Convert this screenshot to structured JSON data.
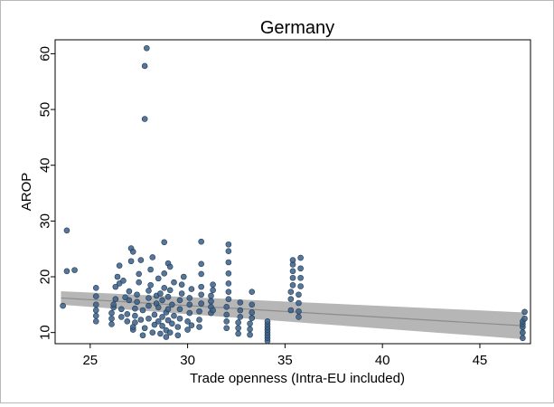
{
  "chart_data": {
    "type": "scatter",
    "title": "Germany",
    "xlabel": "Trade openness (Intra-EU included)",
    "ylabel": "AROP",
    "xlim": [
      23.2,
      47.6
    ],
    "ylim": [
      8.0,
      62.5
    ],
    "xticks": [
      "25",
      "30",
      "35",
      "40",
      "45"
    ],
    "yticks": [
      "10",
      "20",
      "30",
      "40",
      "50",
      "60"
    ],
    "grid": false,
    "legend": "none",
    "colors": {
      "points": "#3b5f86",
      "points_edge": "#1f3a57",
      "fit_line": "#8c8c8c",
      "ci_band": "#a9a9a9"
    },
    "fit": {
      "type": "linear",
      "x": [
        23.5,
        47.3
      ],
      "y": [
        16.2,
        11.2
      ],
      "ci_lower": [
        15.0,
        8.8
      ],
      "ci_upper": [
        17.4,
        13.6
      ]
    },
    "series": [
      {
        "points": [
          [
            23.6,
            14.8
          ],
          [
            23.8,
            28.3
          ],
          [
            23.8,
            21.0
          ],
          [
            24.2,
            21.2
          ],
          [
            25.3,
            12.0
          ],
          [
            25.3,
            13.0
          ],
          [
            25.3,
            14.0
          ],
          [
            25.3,
            15.0
          ],
          [
            25.3,
            16.5
          ],
          [
            25.3,
            18.0
          ],
          [
            26.1,
            11.5
          ],
          [
            26.1,
            12.5
          ],
          [
            26.1,
            13.5
          ],
          [
            26.2,
            14.5
          ],
          [
            26.2,
            15.0
          ],
          [
            26.3,
            16.0
          ],
          [
            26.3,
            18.2
          ],
          [
            26.4,
            20.0
          ],
          [
            26.5,
            22.0
          ],
          [
            26.5,
            18.8
          ],
          [
            26.6,
            12.8
          ],
          [
            26.6,
            14.2
          ],
          [
            26.7,
            19.3
          ],
          [
            26.8,
            16.3
          ],
          [
            26.9,
            12.0
          ],
          [
            26.9,
            13.3
          ],
          [
            27.0,
            15.8
          ],
          [
            27.0,
            17.4
          ],
          [
            27.1,
            22.8
          ],
          [
            27.1,
            25.1
          ],
          [
            27.2,
            24.5
          ],
          [
            27.2,
            10.5
          ],
          [
            27.2,
            11.0
          ],
          [
            27.3,
            11.8
          ],
          [
            27.3,
            13.0
          ],
          [
            27.3,
            14.3
          ],
          [
            27.4,
            15.5
          ],
          [
            27.4,
            16.8
          ],
          [
            27.5,
            19.0
          ],
          [
            27.5,
            20.5
          ],
          [
            27.6,
            23.0
          ],
          [
            27.6,
            12.3
          ],
          [
            27.7,
            14.0
          ],
          [
            27.7,
            9.5
          ],
          [
            27.8,
            10.8
          ],
          [
            27.8,
            48.3
          ],
          [
            27.8,
            57.8
          ],
          [
            27.9,
            61.0
          ],
          [
            28.0,
            12.5
          ],
          [
            28.0,
            14.8
          ],
          [
            28.0,
            16.2
          ],
          [
            28.0,
            17.5
          ],
          [
            28.1,
            18.5
          ],
          [
            28.1,
            21.3
          ],
          [
            28.2,
            23.5
          ],
          [
            28.2,
            10.0
          ],
          [
            28.3,
            11.4
          ],
          [
            28.3,
            13.2
          ],
          [
            28.4,
            15.2
          ],
          [
            28.4,
            16.6
          ],
          [
            28.5,
            19.7
          ],
          [
            28.5,
            12.0
          ],
          [
            28.5,
            14.5
          ],
          [
            28.6,
            17.0
          ],
          [
            28.6,
            9.8
          ],
          [
            28.7,
            11.2
          ],
          [
            28.7,
            12.8
          ],
          [
            28.7,
            15.8
          ],
          [
            28.8,
            18.0
          ],
          [
            28.8,
            20.6
          ],
          [
            28.8,
            26.2
          ],
          [
            28.9,
            9.2
          ],
          [
            28.9,
            10.4
          ],
          [
            28.9,
            13.6
          ],
          [
            29.0,
            16.4
          ],
          [
            29.0,
            22.4
          ],
          [
            29.0,
            14.2
          ],
          [
            29.0,
            12.2
          ],
          [
            29.1,
            10.0
          ],
          [
            29.1,
            21.8
          ],
          [
            29.1,
            17.6
          ],
          [
            29.2,
            15.0
          ],
          [
            29.2,
            11.6
          ],
          [
            29.3,
            13.0
          ],
          [
            29.3,
            19.0
          ],
          [
            29.5,
            9.5
          ],
          [
            29.5,
            11.0
          ],
          [
            29.6,
            12.5
          ],
          [
            29.6,
            14.2
          ],
          [
            29.6,
            15.8
          ],
          [
            29.7,
            17.0
          ],
          [
            29.7,
            18.6
          ],
          [
            29.8,
            20.0
          ],
          [
            30.0,
            10.5
          ],
          [
            30.0,
            12.0
          ],
          [
            30.1,
            13.5
          ],
          [
            30.1,
            15.0
          ],
          [
            30.1,
            16.2
          ],
          [
            30.2,
            11.3
          ],
          [
            30.2,
            17.8
          ],
          [
            30.6,
            11.0
          ],
          [
            30.6,
            12.3
          ],
          [
            30.6,
            13.8
          ],
          [
            30.7,
            15.2
          ],
          [
            30.7,
            16.8
          ],
          [
            30.7,
            18.2
          ],
          [
            30.7,
            20.5
          ],
          [
            30.7,
            22.3
          ],
          [
            30.7,
            26.3
          ],
          [
            31.2,
            13.5
          ],
          [
            31.2,
            14.6
          ],
          [
            31.2,
            15.6
          ],
          [
            31.2,
            16.6
          ],
          [
            31.3,
            17.6
          ],
          [
            31.3,
            18.6
          ],
          [
            31.3,
            14.0
          ],
          [
            32.0,
            10.8
          ],
          [
            32.0,
            12.0
          ],
          [
            32.0,
            13.2
          ],
          [
            32.0,
            14.6
          ],
          [
            32.1,
            16.0
          ],
          [
            32.1,
            17.3
          ],
          [
            32.1,
            18.8
          ],
          [
            32.1,
            20.6
          ],
          [
            32.1,
            22.6
          ],
          [
            32.1,
            24.6
          ],
          [
            32.1,
            25.8
          ],
          [
            32.6,
            9.8
          ],
          [
            32.6,
            10.8
          ],
          [
            32.6,
            11.8
          ],
          [
            32.7,
            12.8
          ],
          [
            32.7,
            14.0
          ],
          [
            32.7,
            15.4
          ],
          [
            33.2,
            9.6
          ],
          [
            33.2,
            10.6
          ],
          [
            33.2,
            11.6
          ],
          [
            33.3,
            12.6
          ],
          [
            33.3,
            13.6
          ],
          [
            33.3,
            15.0
          ],
          [
            33.3,
            17.3
          ],
          [
            34.1,
            8.5
          ],
          [
            34.1,
            9.0
          ],
          [
            34.1,
            9.5
          ],
          [
            34.1,
            10.0
          ],
          [
            34.1,
            10.5
          ],
          [
            34.1,
            11.0
          ],
          [
            34.1,
            11.5
          ],
          [
            34.1,
            12.0
          ],
          [
            35.3,
            14.0
          ],
          [
            35.3,
            16.0
          ],
          [
            35.3,
            17.3
          ],
          [
            35.4,
            18.5
          ],
          [
            35.4,
            19.8
          ],
          [
            35.4,
            21.0
          ],
          [
            35.4,
            22.2
          ],
          [
            35.4,
            23.0
          ],
          [
            35.7,
            12.8
          ],
          [
            35.7,
            13.8
          ],
          [
            35.7,
            15.3
          ],
          [
            35.7,
            16.8
          ],
          [
            35.8,
            18.3
          ],
          [
            35.8,
            19.8
          ],
          [
            35.8,
            21.5
          ],
          [
            35.8,
            23.4
          ],
          [
            47.2,
            9.0
          ],
          [
            47.2,
            10.0
          ],
          [
            47.2,
            11.0
          ],
          [
            47.2,
            11.5
          ],
          [
            47.2,
            12.0
          ],
          [
            47.3,
            12.5
          ],
          [
            47.3,
            13.7
          ]
        ]
      }
    ]
  }
}
